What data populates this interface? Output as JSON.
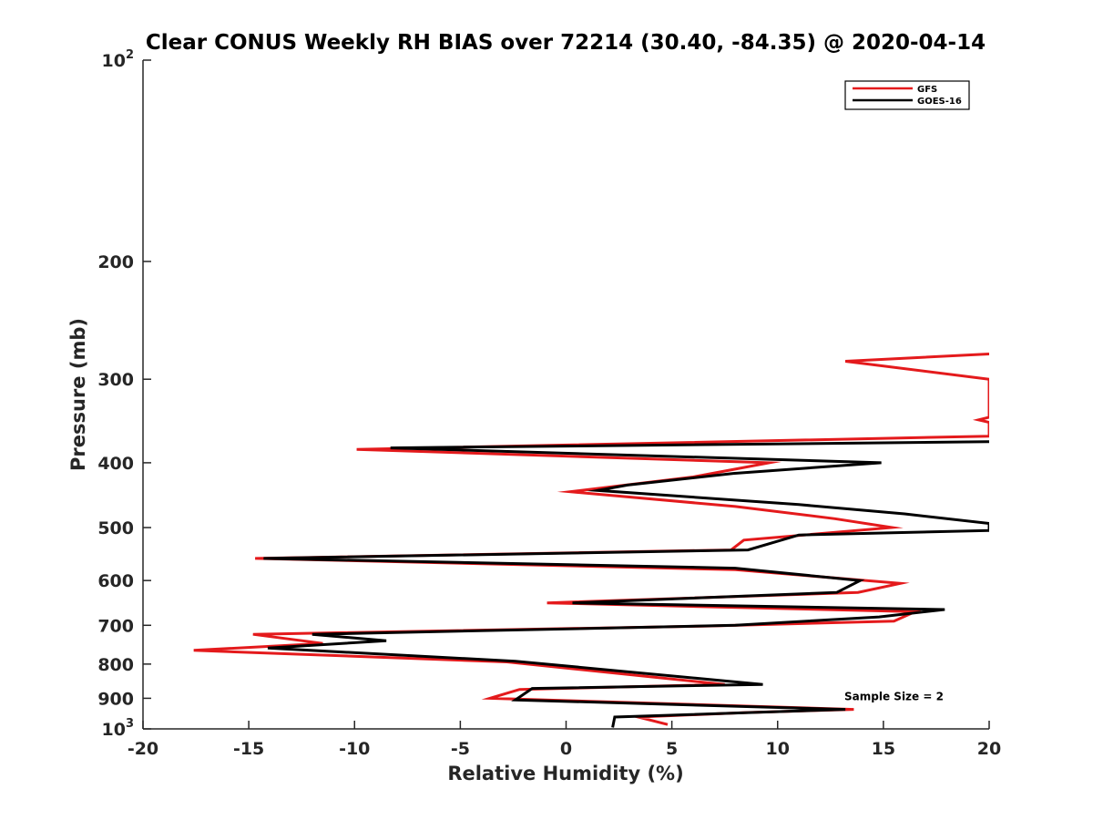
{
  "chart_data": {
    "type": "line",
    "title": "Clear CONUS Weekly RH BIAS over 72214 (30.40, -84.35) @ 2020-04-14",
    "xlabel": "Relative Humidity (%)",
    "ylabel": "Pressure (mb)",
    "xlim": [
      -20,
      20
    ],
    "ylim": [
      100,
      1000
    ],
    "yscale": "log",
    "y_reversed": true,
    "grid": false,
    "legend_position": "top-right",
    "x_ticks": [
      {
        "value": -20,
        "label": "-20"
      },
      {
        "value": -15,
        "label": "-15"
      },
      {
        "value": -10,
        "label": "-10"
      },
      {
        "value": -5,
        "label": "-5"
      },
      {
        "value": 0,
        "label": "0"
      },
      {
        "value": 5,
        "label": "5"
      },
      {
        "value": 10,
        "label": "10"
      },
      {
        "value": 15,
        "label": "15"
      },
      {
        "value": 20,
        "label": "20"
      }
    ],
    "y_ticks": [
      {
        "value": 100,
        "base": "10",
        "exp": "2"
      },
      {
        "value": 200,
        "label": "200"
      },
      {
        "value": 300,
        "label": "300"
      },
      {
        "value": 400,
        "label": "400"
      },
      {
        "value": 500,
        "label": "500"
      },
      {
        "value": 600,
        "label": "600"
      },
      {
        "value": 700,
        "label": "700"
      },
      {
        "value": 800,
        "label": "800"
      },
      {
        "value": 900,
        "label": "900"
      },
      {
        "value": 1000,
        "base": "10",
        "exp": "3"
      }
    ],
    "series": [
      {
        "name": "GFS",
        "color": "#e41a1c",
        "points": [
          [
            20,
            275
          ],
          [
            13.2,
            282
          ],
          [
            20,
            300
          ],
          [
            20,
            342
          ],
          [
            19.5,
            345
          ],
          [
            20,
            348
          ],
          [
            20,
            365
          ],
          [
            -9.9,
            382
          ],
          [
            9.6,
            400
          ],
          [
            6,
            420
          ],
          [
            0.2,
            442
          ],
          [
            8,
            465
          ],
          [
            12.7,
            485
          ],
          [
            15.4,
            500
          ],
          [
            8.4,
            522
          ],
          [
            7.8,
            540
          ],
          [
            -14.7,
            556
          ],
          [
            8,
            578
          ],
          [
            15.8,
            606
          ],
          [
            13.8,
            625
          ],
          [
            -0.9,
            648
          ],
          [
            16.5,
            668
          ],
          [
            15.5,
            690
          ],
          [
            6.5,
            702
          ],
          [
            -14.8,
            722
          ],
          [
            -11.5,
            745
          ],
          [
            -17.6,
            763
          ],
          [
            -2.8,
            794
          ],
          [
            7.5,
            858
          ],
          [
            -2.2,
            873
          ],
          [
            -3.6,
            900
          ],
          [
            13.6,
            935
          ],
          [
            8.6,
            945
          ],
          [
            3.4,
            960
          ],
          [
            4.8,
            985
          ]
        ]
      },
      {
        "name": "GOES-16",
        "color": "#000000",
        "points": [
          [
            20,
            372
          ],
          [
            -8.3,
            380
          ],
          [
            14.9,
            400
          ],
          [
            7.9,
            415
          ],
          [
            2.9,
            432
          ],
          [
            1.5,
            440
          ],
          [
            11,
            462
          ],
          [
            16,
            477
          ],
          [
            20,
            493
          ],
          [
            20,
            505
          ],
          [
            11,
            513
          ],
          [
            8.6,
            540
          ],
          [
            -14.3,
            556
          ],
          [
            8,
            575
          ],
          [
            13.9,
            600
          ],
          [
            12.8,
            625
          ],
          [
            0.3,
            648
          ],
          [
            17.9,
            663
          ],
          [
            14.8,
            680
          ],
          [
            8,
            700
          ],
          [
            -12,
            722
          ],
          [
            -8.5,
            738
          ],
          [
            -14.1,
            757
          ],
          [
            -2.4,
            792
          ],
          [
            9.3,
            858
          ],
          [
            -1.6,
            870
          ],
          [
            -2.4,
            905
          ],
          [
            13.2,
            935
          ],
          [
            2.3,
            960
          ],
          [
            2.2,
            995
          ]
        ]
      }
    ],
    "annotations": [
      {
        "text": "Sample Size = 2",
        "x": 15.5,
        "y": 895
      }
    ]
  }
}
